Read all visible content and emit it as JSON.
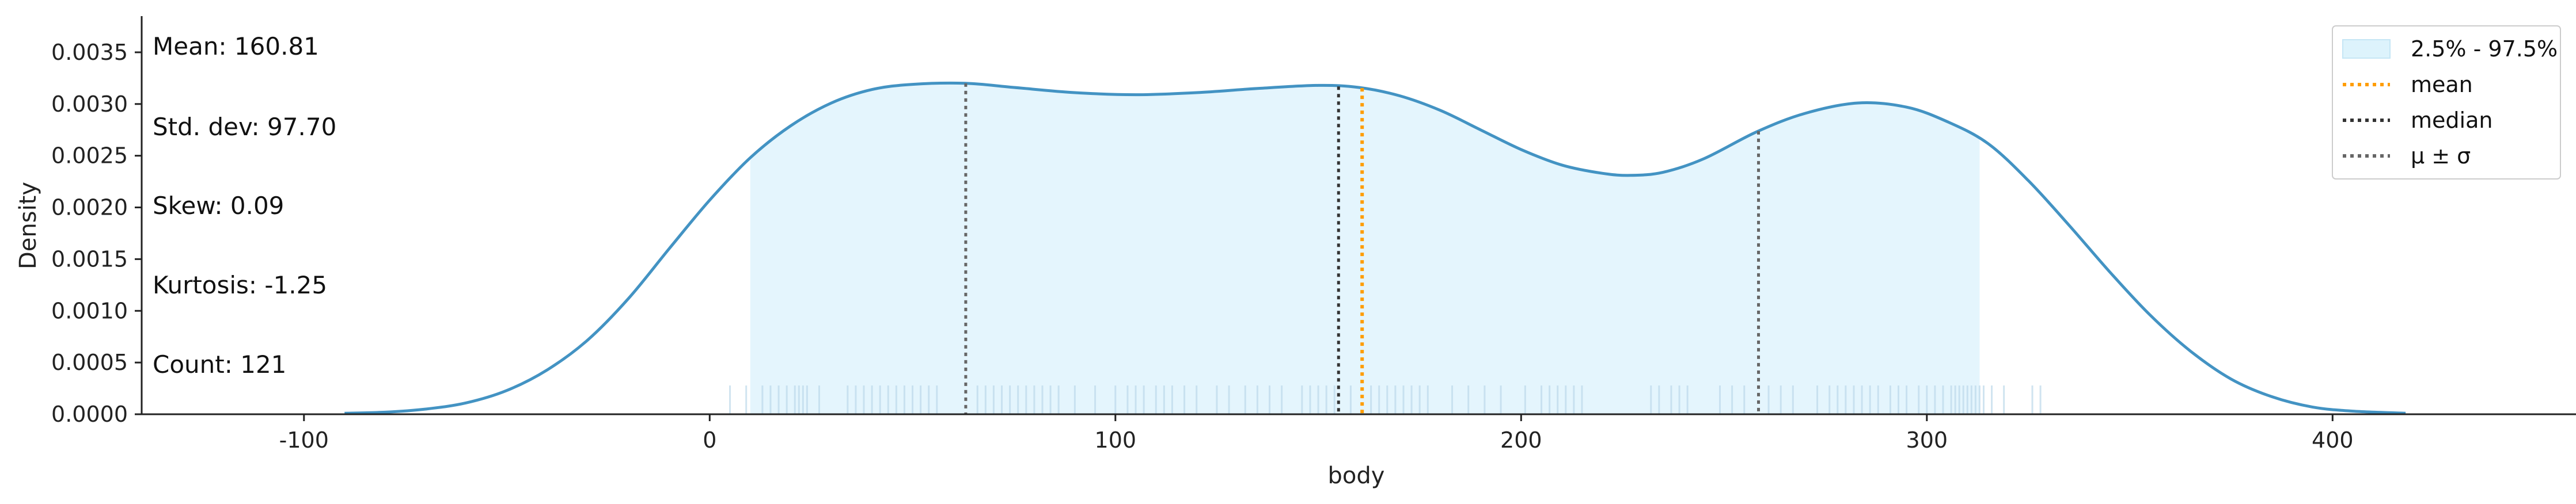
{
  "chart_data": {
    "type": "area",
    "xlabel": "body",
    "ylabel": "Density",
    "xlim": [
      -140,
      460
    ],
    "ylim": [
      0,
      0.00385
    ],
    "x_ticks": [
      -100,
      0,
      100,
      200,
      300,
      400
    ],
    "x_tick_labels": [
      "-100",
      "0",
      "100",
      "200",
      "300",
      "400"
    ],
    "y_ticks": [
      0,
      0.0005,
      0.001,
      0.0015,
      0.002,
      0.0025,
      0.003,
      0.0035
    ],
    "y_tick_labels": [
      "0.0000",
      "0.0005",
      "0.0010",
      "0.0015",
      "0.0020",
      "0.0025",
      "0.0030",
      "0.0035"
    ],
    "grid": false,
    "legend_position": "top-right",
    "density_series": {
      "color": "#4393c3",
      "x": [
        -90,
        -80,
        -70,
        -60,
        -50,
        -40,
        -30,
        -20,
        -10,
        0,
        10,
        20,
        30,
        40,
        50,
        63,
        75,
        90,
        105,
        120,
        135,
        150,
        160,
        170,
        180,
        190,
        200,
        210,
        220,
        227,
        235,
        245,
        258,
        270,
        283,
        295,
        305,
        315,
        325,
        335,
        345,
        355,
        365,
        375,
        385,
        395,
        405,
        418
      ],
      "y": [
        1e-05,
        2e-05,
        5e-05,
        0.00011,
        0.00023,
        0.00043,
        0.00072,
        0.00112,
        0.0016,
        0.00207,
        0.00248,
        0.00279,
        0.00301,
        0.00314,
        0.00319,
        0.0032,
        0.00316,
        0.00311,
        0.00309,
        0.00311,
        0.00315,
        0.00318,
        0.00316,
        0.00308,
        0.00294,
        0.00275,
        0.00256,
        0.00241,
        0.00233,
        0.00231,
        0.00234,
        0.00247,
        0.00273,
        0.00291,
        0.00301,
        0.00297,
        0.00283,
        0.00262,
        0.00226,
        0.00183,
        0.00138,
        0.00096,
        0.00061,
        0.00034,
        0.00017,
        7e-05,
        3e-05,
        1e-05
      ]
    },
    "interval": {
      "label": "2.5% - 97.5%",
      "low": 10,
      "high": 313,
      "color": "#ddf3fc"
    },
    "reference_lines": [
      {
        "name": "mean",
        "x": 160.81,
        "color": "#ff9d00"
      },
      {
        "name": "median",
        "x": 155,
        "color": "#333333"
      },
      {
        "name": "μ ± σ",
        "x": 63.11,
        "color": "#666666"
      },
      {
        "name": "μ ± σ",
        "x": 258.51,
        "color": "#666666"
      }
    ],
    "rug": [
      5,
      9,
      13,
      15,
      17,
      19,
      21,
      22,
      23,
      24,
      27,
      34,
      36,
      38,
      40,
      42,
      44,
      46,
      48,
      50,
      52,
      54,
      56,
      66,
      68,
      70,
      72,
      74,
      76,
      78,
      80,
      82,
      84,
      86,
      90,
      95,
      100,
      103,
      105,
      107,
      110,
      112,
      114,
      117,
      120,
      125,
      128,
      132,
      135,
      138,
      141,
      146,
      148,
      150,
      152,
      154,
      158,
      163,
      165,
      167,
      169,
      171,
      173,
      175,
      177,
      183,
      187,
      191,
      195,
      201,
      205,
      207,
      209,
      211,
      213,
      215,
      232,
      234,
      237,
      239,
      241,
      249,
      252,
      255,
      261,
      264,
      267,
      273,
      276,
      278,
      280,
      282,
      284,
      286,
      288,
      291,
      293,
      295,
      298,
      300,
      302,
      304,
      306,
      307,
      308,
      309,
      310,
      311,
      312,
      313,
      314,
      316,
      319,
      326,
      328
    ],
    "legend": [
      {
        "label": "2.5% - 97.5%",
        "kind": "patch",
        "color": "#ddf3fc"
      },
      {
        "label": "mean",
        "kind": "line",
        "color": "#ff9d00"
      },
      {
        "label": "median",
        "kind": "line",
        "color": "#333333"
      },
      {
        "label": "μ ± σ",
        "kind": "line",
        "color": "#666666"
      }
    ]
  },
  "stats": {
    "mean": "Mean: 160.81",
    "std": "Std. dev: 97.70",
    "skew": "Skew: 0.09",
    "kurtosis": "Kurtosis: -1.25",
    "count": "Count: 121"
  }
}
